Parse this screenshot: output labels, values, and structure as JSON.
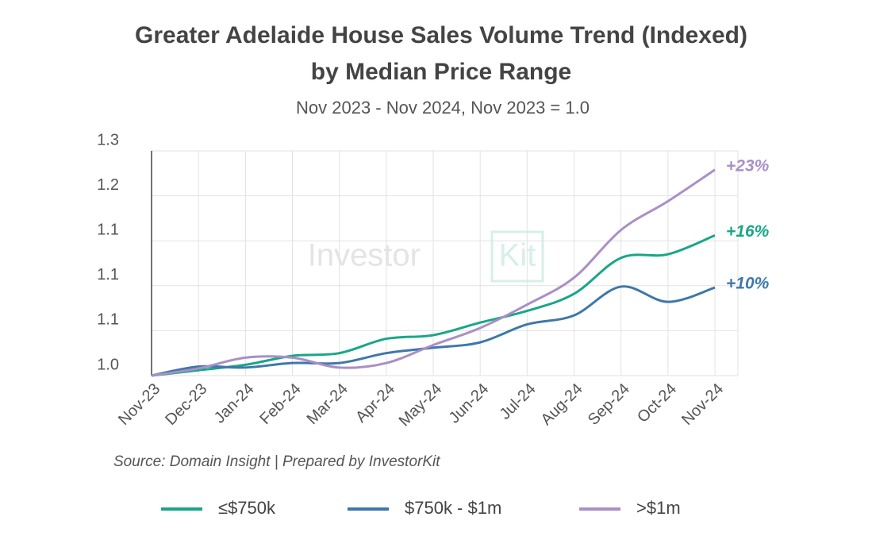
{
  "chart_data": {
    "type": "line",
    "title": [
      "Greater Adelaide House Sales Volume Trend (Indexed)",
      "by Median Price Range"
    ],
    "subtitle": "Nov 2023 - Nov 2024, Nov 2023 = 1.0",
    "watermark": [
      "Investor",
      "Kit"
    ],
    "source": "Source: Domain Insight | Prepared by InvestorKit",
    "categories": [
      "Nov-23",
      "Dec-23",
      "Jan-24",
      "Feb-24",
      "Mar-24",
      "Apr-24",
      "May-24",
      "Jun-24",
      "Jul-24",
      "Aug-24",
      "Sep-24",
      "Oct-24",
      "Nov-24"
    ],
    "series": [
      {
        "name": "≤$750k",
        "color": "#1aa688",
        "end_label": "+16%",
        "values": [
          1.0,
          1.006,
          1.012,
          1.022,
          1.025,
          1.041,
          1.045,
          1.059,
          1.072,
          1.091,
          1.131,
          1.135,
          1.156
        ]
      },
      {
        "name": "$750k - $1m",
        "color": "#3e78a8",
        "end_label": "+10%",
        "values": [
          1.0,
          1.01,
          1.009,
          1.014,
          1.014,
          1.025,
          1.031,
          1.037,
          1.057,
          1.067,
          1.099,
          1.082,
          1.098
        ]
      },
      {
        "name": ">$1m",
        "color": "#a98fc6",
        "end_label": "+23%",
        "values": [
          1.0,
          1.008,
          1.02,
          1.02,
          1.009,
          1.014,
          1.034,
          1.053,
          1.079,
          1.109,
          1.162,
          1.194,
          1.229
        ]
      }
    ],
    "ylim": [
      1.0,
      1.25
    ],
    "yticks": [
      {
        "value": 1.0,
        "label": "1.0"
      },
      {
        "value": 1.05,
        "label": "1.1"
      },
      {
        "value": 1.1,
        "label": "1.1"
      },
      {
        "value": 1.15,
        "label": "1.1"
      },
      {
        "value": 1.2,
        "label": "1.2"
      },
      {
        "value": 1.25,
        "label": "1.3"
      }
    ],
    "grid": true,
    "legend": "bottom"
  }
}
